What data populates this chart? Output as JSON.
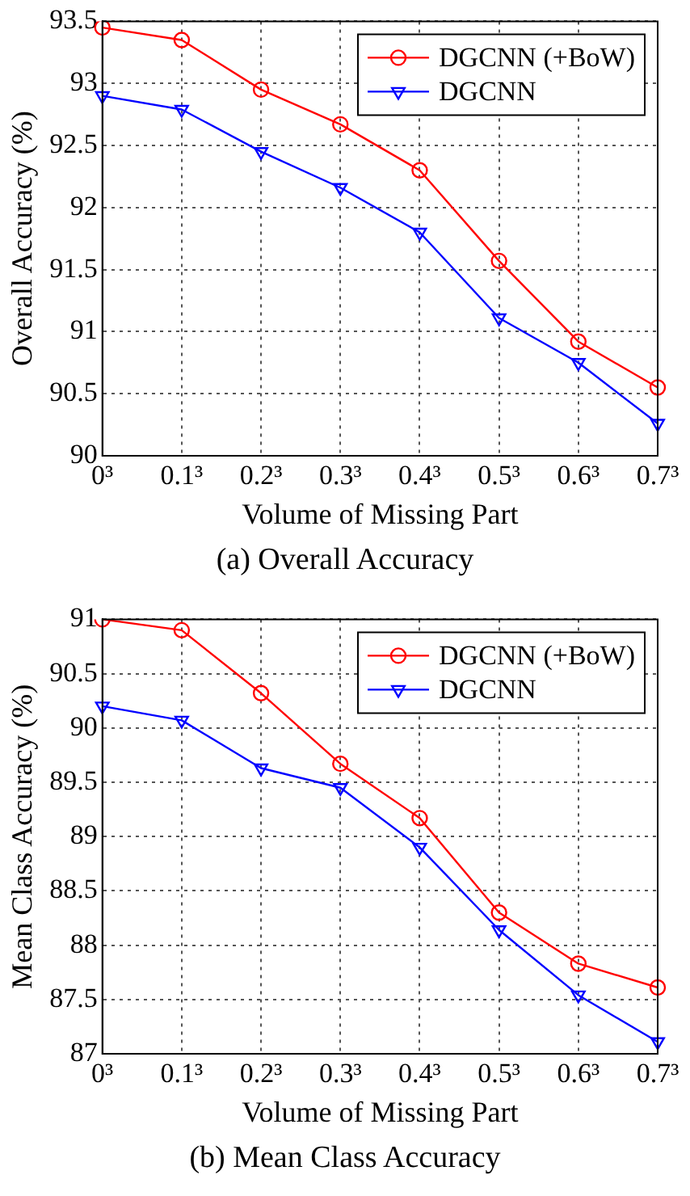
{
  "chart_data": [
    {
      "type": "line",
      "xlabel": "Volume of Missing Part",
      "ylabel": "Overall Accuracy (%)",
      "categories": [
        "0³",
        "0.1³",
        "0.2³",
        "0.3³",
        "0.4³",
        "0.5³",
        "0.6³",
        "0.7³"
      ],
      "series": [
        {
          "name": "DGCNN (+BoW)",
          "color": "#ff0000",
          "marker": "circle",
          "values": [
            93.45,
            93.35,
            92.95,
            92.67,
            92.3,
            91.57,
            90.92,
            90.55
          ]
        },
        {
          "name": "DGCNN",
          "color": "#0000ff",
          "marker": "triangle",
          "values": [
            92.9,
            92.79,
            92.45,
            92.16,
            91.8,
            91.11,
            90.75,
            90.26
          ]
        }
      ],
      "ylim": [
        90,
        93.5
      ],
      "yticks": [
        90,
        90.5,
        91,
        91.5,
        92,
        92.5,
        93,
        93.5
      ],
      "grid": true,
      "legend": "top right",
      "line_style": "solid",
      "annotations": [
        "(a)  Overall Accuracy"
      ]
    },
    {
      "type": "line",
      "xlabel": "Volume of Missing Part",
      "ylabel": "Mean Class Accuracy (%)",
      "categories": [
        "0³",
        "0.1³",
        "0.2³",
        "0.3³",
        "0.4³",
        "0.5³",
        "0.6³",
        "0.7³"
      ],
      "series": [
        {
          "name": "DGCNN (+BoW)",
          "color": "#ff0000",
          "marker": "circle",
          "values": [
            91.0,
            90.9,
            90.32,
            89.67,
            89.17,
            88.3,
            87.83,
            87.61
          ]
        },
        {
          "name": "DGCNN",
          "color": "#0000ff",
          "marker": "triangle",
          "values": [
            90.2,
            90.07,
            89.63,
            89.45,
            88.9,
            88.14,
            87.54,
            87.11
          ]
        }
      ],
      "ylim": [
        87,
        91
      ],
      "yticks": [
        87,
        87.5,
        88,
        88.5,
        89,
        89.5,
        90,
        90.5,
        91
      ],
      "grid": true,
      "legend": "top right",
      "line_style": "solid",
      "annotations": [
        "(b)  Mean Class Accuracy"
      ]
    }
  ]
}
